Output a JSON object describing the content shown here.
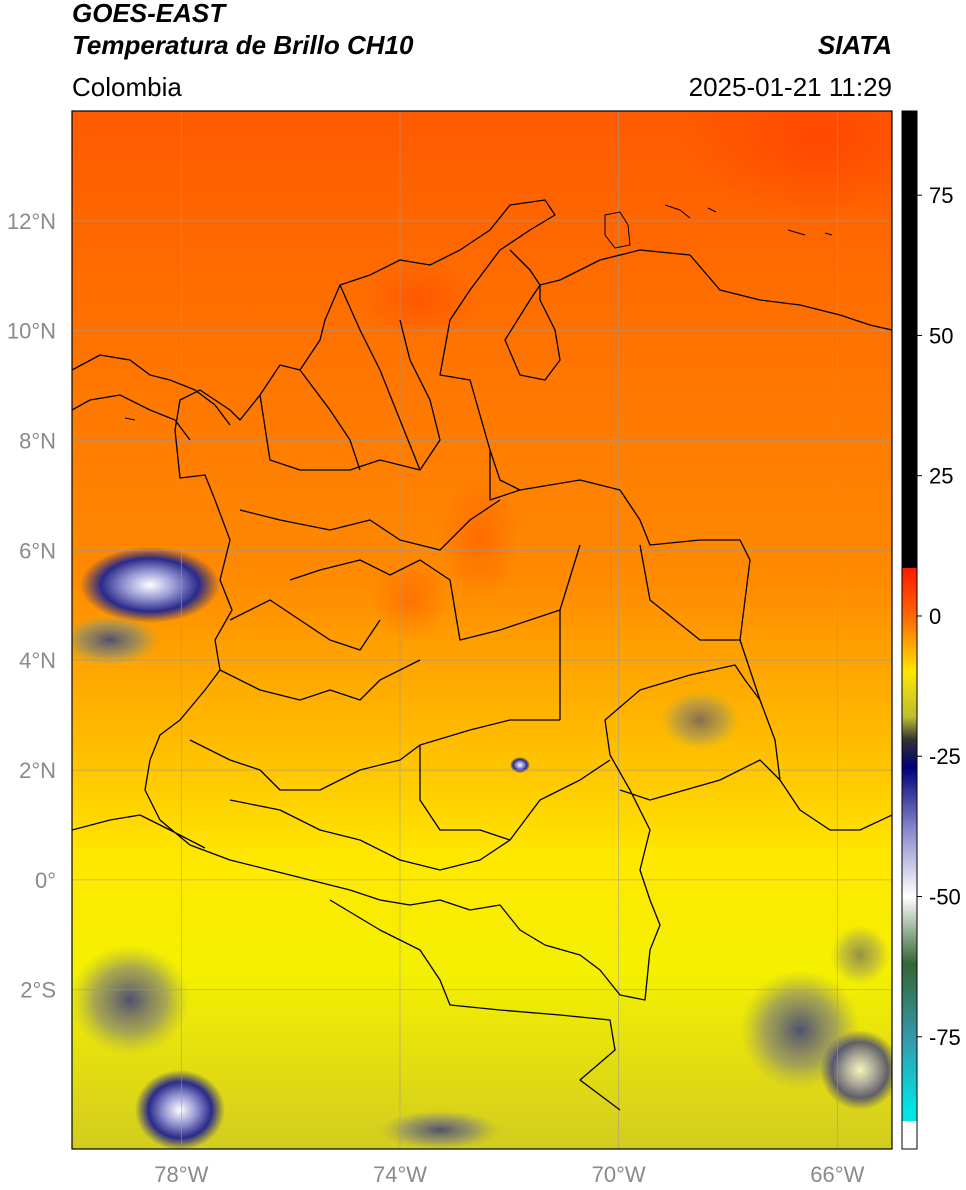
{
  "header": {
    "title_line1": "GOES-EAST",
    "title_line2": "Temperatura de Brillo CH10",
    "region": "Colombia",
    "organization": "SIATA",
    "timestamp": "2025-01-21 11:29"
  },
  "map": {
    "lon_range": [
      -80,
      -65
    ],
    "lat_range": [
      -4.9,
      14
    ],
    "lat_ticks": [
      {
        "value": 12,
        "label": "12°N"
      },
      {
        "value": 10,
        "label": "10°N"
      },
      {
        "value": 8,
        "label": "8°N"
      },
      {
        "value": 6,
        "label": "6°N"
      },
      {
        "value": 4,
        "label": "4°N"
      },
      {
        "value": 2,
        "label": "2°N"
      },
      {
        "value": 0,
        "label": "0°"
      },
      {
        "value": -2,
        "label": "2°S"
      }
    ],
    "lon_ticks": [
      {
        "value": -78,
        "label": "78°W"
      },
      {
        "value": -74,
        "label": "74°W"
      },
      {
        "value": -70,
        "label": "70°W"
      },
      {
        "value": -66,
        "label": "66°W"
      }
    ],
    "grid": true
  },
  "colorbar": {
    "range": [
      -95,
      90
    ],
    "ticks": [
      {
        "value": 75,
        "label": "75"
      },
      {
        "value": 50,
        "label": "50"
      },
      {
        "value": 25,
        "label": "25"
      },
      {
        "value": 0,
        "label": "0"
      },
      {
        "value": -25,
        "label": "-25"
      },
      {
        "value": -50,
        "label": "-50"
      },
      {
        "value": -75,
        "label": "-75"
      }
    ],
    "colors": {
      "above_8": "#000000",
      "8": "#ff1a00",
      "0": "#ff6600",
      "-10": "#ffe600",
      "-18": "#bdbd30",
      "-22": "#333333",
      "-27": "#00007a",
      "-38": "#8888cc",
      "-50": "#ffffff",
      "-62": "#336633",
      "-75": "#3399aa",
      "-88": "#00e5e5",
      "below_-90": "#ffffff"
    }
  }
}
